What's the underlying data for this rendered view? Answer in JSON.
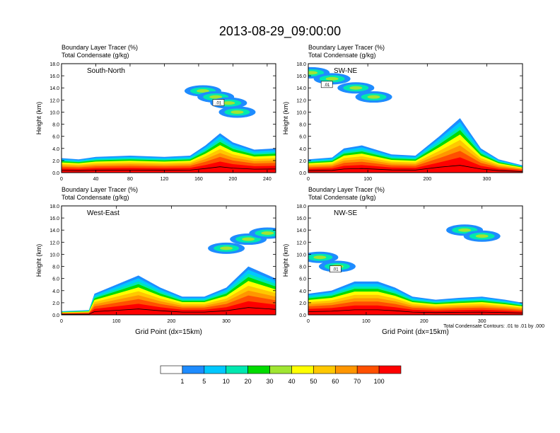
{
  "title": "2013-08-29_09:00:00",
  "colorbar": {
    "ticks": [
      "1",
      "5",
      "10",
      "20",
      "30",
      "40",
      "50",
      "60",
      "70",
      "100"
    ],
    "colors": [
      "#ffffff",
      "#1e8cff",
      "#00c8ff",
      "#00e8b0",
      "#00dc00",
      "#a0e632",
      "#ffff00",
      "#ffc800",
      "#ff9600",
      "#ff5000",
      "#ff0000"
    ]
  },
  "footnote": "Total Condensate Contours: .01 to .01 by .000",
  "chart_data": [
    {
      "type": "contour",
      "name": "South-North",
      "label_top": "Boundary Layer Tracer   (%)",
      "label_bottom": "Total Condensate   (g/kg)",
      "ylabel": "Height (km)",
      "xlabel": "",
      "xlim": [
        0,
        250
      ],
      "ylim": [
        0,
        18
      ],
      "xticks": [
        0,
        40,
        80,
        120,
        160,
        200,
        240
      ],
      "yticks": [
        "0.0",
        "2.0",
        "4.0",
        "6.0",
        "8.0",
        "10.0",
        "12.0",
        "14.0",
        "16.0",
        "18.0"
      ],
      "contour_label": ".01",
      "boundary_layer": [
        [
          0,
          2.4
        ],
        [
          20,
          2.2
        ],
        [
          40,
          2.6
        ],
        [
          80,
          2.8
        ],
        [
          120,
          2.6
        ],
        [
          150,
          2.8
        ],
        [
          168,
          4.5
        ],
        [
          185,
          6.5
        ],
        [
          200,
          5.0
        ],
        [
          225,
          3.8
        ],
        [
          250,
          4.0
        ]
      ],
      "anvil": [
        [
          165,
          13.5
        ],
        [
          180,
          12.5
        ],
        [
          195,
          11.5
        ],
        [
          205,
          10.0
        ]
      ]
    },
    {
      "type": "contour",
      "name": "SW-NE",
      "label_top": "Boundary Layer Tracer   (%)",
      "label_bottom": "Total Condensate   (g/kg)",
      "ylabel": "Height (km)",
      "xlabel": "",
      "xlim": [
        0,
        360
      ],
      "ylim": [
        0,
        18
      ],
      "xticks": [
        0,
        100,
        200,
        300
      ],
      "yticks": [
        "0.0",
        "2.0",
        "4.0",
        "6.0",
        "8.0",
        "10.0",
        "12.0",
        "14.0",
        "16.0",
        "18.0"
      ],
      "contour_label": ".01",
      "boundary_layer": [
        [
          0,
          2.2
        ],
        [
          40,
          2.5
        ],
        [
          60,
          4.0
        ],
        [
          90,
          4.5
        ],
        [
          140,
          3.0
        ],
        [
          180,
          2.8
        ],
        [
          220,
          6.0
        ],
        [
          255,
          9.0
        ],
        [
          290,
          4.0
        ],
        [
          320,
          2.2
        ],
        [
          360,
          1.2
        ]
      ],
      "anvil": [
        [
          5,
          16.5
        ],
        [
          40,
          15.5
        ],
        [
          80,
          14.0
        ],
        [
          110,
          12.5
        ]
      ]
    },
    {
      "type": "contour",
      "name": "West-East",
      "label_top": "Boundary Layer Tracer   (%)",
      "label_bottom": "Total Condensate   (g/kg)",
      "ylabel": "Height (km)",
      "xlabel": "Grid Point (dx=15km)",
      "xlim": [
        0,
        390
      ],
      "ylim": [
        0,
        18
      ],
      "xticks": [
        0,
        100,
        200,
        300
      ],
      "yticks": [
        "0.0",
        "2.0",
        "4.0",
        "6.0",
        "8.0",
        "10.0",
        "12.0",
        "14.0",
        "16.0",
        "18.0"
      ],
      "contour_label": "",
      "boundary_layer": [
        [
          0,
          0.6
        ],
        [
          50,
          0.8
        ],
        [
          60,
          3.5
        ],
        [
          100,
          5.0
        ],
        [
          140,
          6.5
        ],
        [
          180,
          4.5
        ],
        [
          220,
          3.0
        ],
        [
          260,
          3.0
        ],
        [
          300,
          4.5
        ],
        [
          340,
          8.0
        ],
        [
          390,
          6.0
        ]
      ],
      "anvil": [
        [
          300,
          11.0
        ],
        [
          340,
          12.5
        ],
        [
          375,
          13.5
        ]
      ]
    },
    {
      "type": "contour",
      "name": "NW-SE",
      "label_top": "Boundary Layer Tracer   (%)",
      "label_bottom": "Total Condensate   (g/kg)",
      "ylabel": "Height (km)",
      "xlabel": "Grid Point (dx=15km)",
      "xlim": [
        0,
        370
      ],
      "ylim": [
        0,
        18
      ],
      "xticks": [
        0,
        100,
        200,
        300
      ],
      "yticks": [
        "0.0",
        "2.0",
        "4.0",
        "6.0",
        "8.0",
        "10.0",
        "12.0",
        "14.0",
        "16.0",
        "18.0"
      ],
      "contour_label": ".01",
      "boundary_layer": [
        [
          0,
          3.5
        ],
        [
          40,
          4.0
        ],
        [
          80,
          5.5
        ],
        [
          120,
          5.5
        ],
        [
          150,
          4.5
        ],
        [
          180,
          3.0
        ],
        [
          220,
          2.5
        ],
        [
          260,
          2.8
        ],
        [
          300,
          3.0
        ],
        [
          340,
          2.5
        ],
        [
          370,
          2.0
        ]
      ],
      "anvil": [
        [
          20,
          9.5
        ],
        [
          50,
          8.0
        ],
        [
          270,
          14.0
        ],
        [
          300,
          13.0
        ]
      ]
    }
  ]
}
